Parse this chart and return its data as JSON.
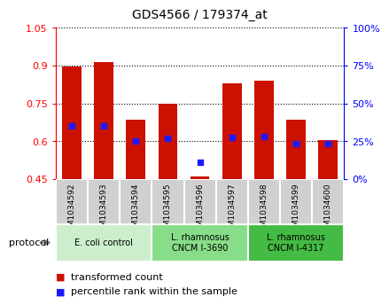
{
  "title": "GDS4566 / 179374_at",
  "samples": [
    "GSM1034592",
    "GSM1034593",
    "GSM1034594",
    "GSM1034595",
    "GSM1034596",
    "GSM1034597",
    "GSM1034598",
    "GSM1034599",
    "GSM1034600"
  ],
  "bar_top": [
    0.895,
    0.915,
    0.685,
    0.75,
    0.46,
    0.83,
    0.84,
    0.685,
    0.605
  ],
  "bar_bottom": [
    0.45,
    0.45,
    0.45,
    0.45,
    0.45,
    0.45,
    0.45,
    0.45,
    0.45
  ],
  "blue_dot_y": [
    0.66,
    0.66,
    0.6,
    0.61,
    0.515,
    0.615,
    0.62,
    0.59,
    0.59
  ],
  "ylim": [
    0.45,
    1.05
  ],
  "yticks_left": [
    0.45,
    0.6,
    0.75,
    0.9,
    1.05
  ],
  "yticks_right": [
    0,
    25,
    50,
    75,
    100
  ],
  "bar_color": "#cc1100",
  "dot_color": "#1a1aff",
  "group_colors": [
    "#cceecc",
    "#88dd88",
    "#44bb44"
  ],
  "group_labels": [
    "E. coli control",
    "L. rhamnosus\nCNCM I-3690",
    "L. rhamnosus\nCNCM I-4317"
  ],
  "group_ranges": [
    [
      0,
      3
    ],
    [
      3,
      6
    ],
    [
      6,
      9
    ]
  ],
  "legend_red": "transformed count",
  "legend_blue": "percentile rank within the sample",
  "sample_bg": "#d0d0d0"
}
